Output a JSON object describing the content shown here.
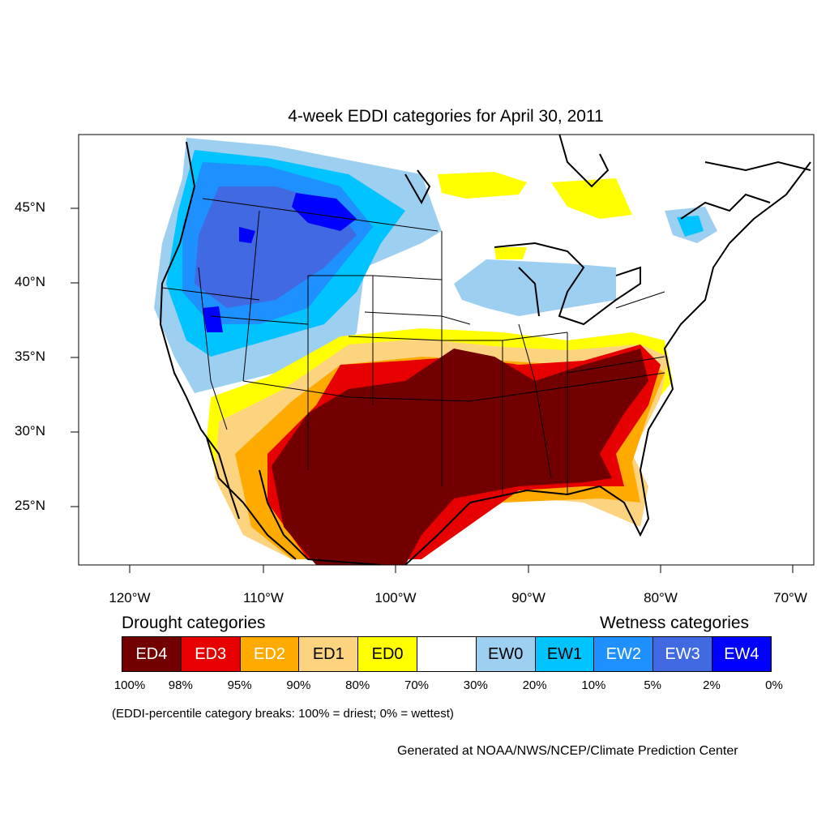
{
  "title": "4-week EDDI categories for April 30, 2011",
  "lat_labels": [
    "45°N",
    "40°N",
    "35°N",
    "30°N",
    "25°N"
  ],
  "lon_labels": [
    "120°W",
    "110°W",
    "100°W",
    "90°W",
    "80°W",
    "70°W"
  ],
  "legend": {
    "drought_heading": "Drought categories",
    "wetness_heading": "Wetness categories",
    "categories": [
      {
        "label": "ED4",
        "color": "#730000"
      },
      {
        "label": "ED3",
        "color": "#e60000"
      },
      {
        "label": "ED2",
        "color": "#ffaa00"
      },
      {
        "label": "ED1",
        "color": "#fcd37f"
      },
      {
        "label": "ED0",
        "color": "#ffff00"
      },
      {
        "label": "",
        "color": "#ffffff"
      },
      {
        "label": "EW0",
        "color": "#9ccff0"
      },
      {
        "label": "EW1",
        "color": "#00c3ff"
      },
      {
        "label": "EW2",
        "color": "#1e90ff"
      },
      {
        "label": "EW3",
        "color": "#4169e1"
      },
      {
        "label": "EW4",
        "color": "#0000ff"
      }
    ],
    "breaks": [
      "100%",
      "98%",
      "95%",
      "90%",
      "80%",
      "70%",
      "30%",
      "20%",
      "10%",
      "5%",
      "2%",
      "0%"
    ],
    "note": "(EDDI-percentile category breaks: 100% = driest; 0% = wettest)"
  },
  "credit": "Generated at NOAA/NWS/NCEP/Climate Prediction Center"
}
